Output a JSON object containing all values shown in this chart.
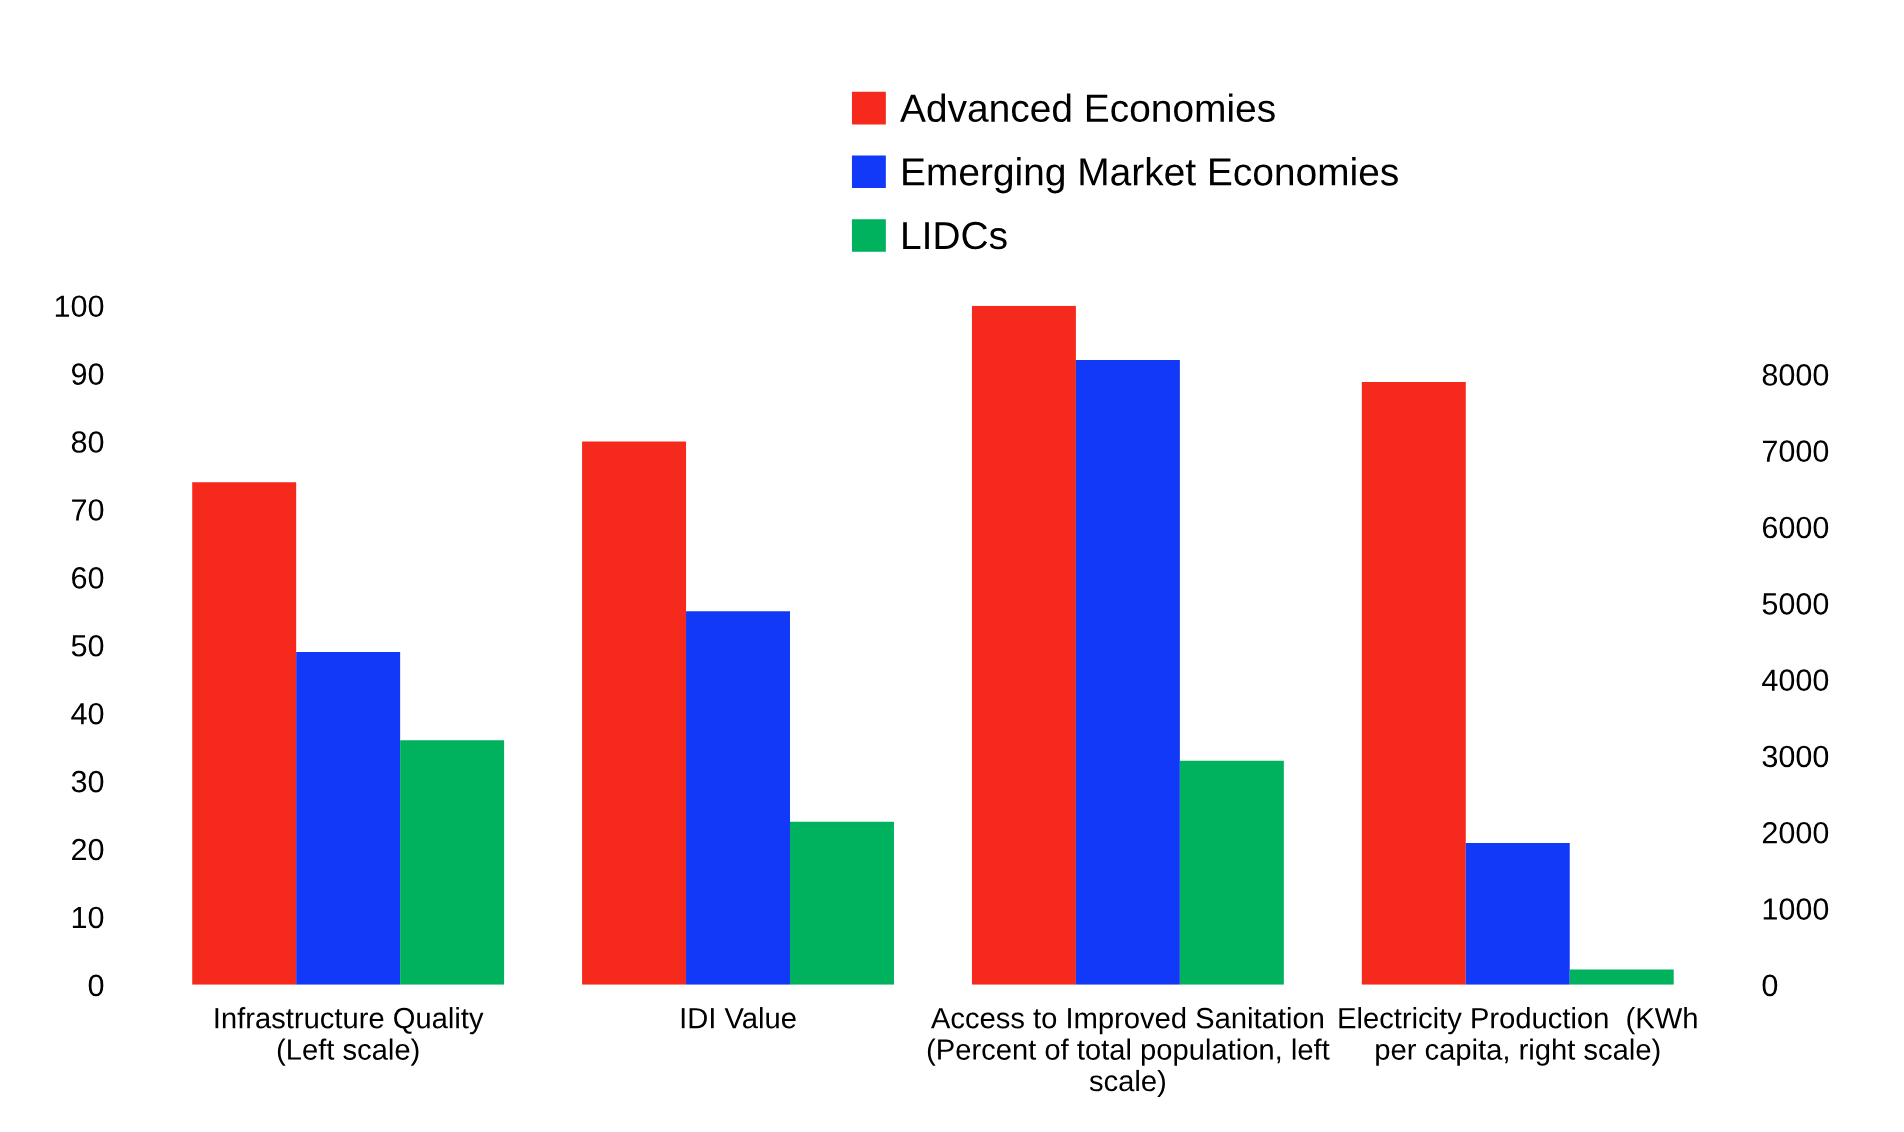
{
  "chart_data": {
    "type": "bar",
    "categories": [
      "Infrastructure Quality\n(Left scale)",
      "IDI Value",
      "Access to Improved Sanitation\n(Percent of total population, left\nscale)",
      "Electricity Production  (KWh\nper capita, right scale)"
    ],
    "series": [
      {
        "name": "Advanced Economies",
        "color": "#f52a1c",
        "values": [
          74,
          80,
          100,
          null
        ]
      },
      {
        "name": "Emerging Market Economies",
        "color": "#1238f8",
        "values": [
          49,
          55,
          92,
          null
        ]
      },
      {
        "name": "LIDCs",
        "color": "#00b15d",
        "values": [
          36,
          24,
          33,
          null
        ]
      },
      {
        "color": "#f52a1c",
        "axis": "y2",
        "values": [
          null,
          null,
          null,
          7900
        ]
      },
      {
        "color": "#1238f8",
        "axis": "y2",
        "values": [
          null,
          null,
          null,
          1860
        ]
      },
      {
        "color": "#00b15d",
        "axis": "y2",
        "values": [
          null,
          null,
          null,
          200
        ]
      }
    ],
    "ylim": [
      0,
      100
    ],
    "yticks": [
      0,
      10,
      20,
      30,
      40,
      50,
      60,
      70,
      80,
      90,
      100
    ],
    "y2lim": [
      0,
      8900
    ],
    "y2ticks": [
      0,
      1000,
      2000,
      3000,
      4000,
      5000,
      6000,
      7000,
      8000
    ],
    "legend": "top",
    "grid": false
  }
}
